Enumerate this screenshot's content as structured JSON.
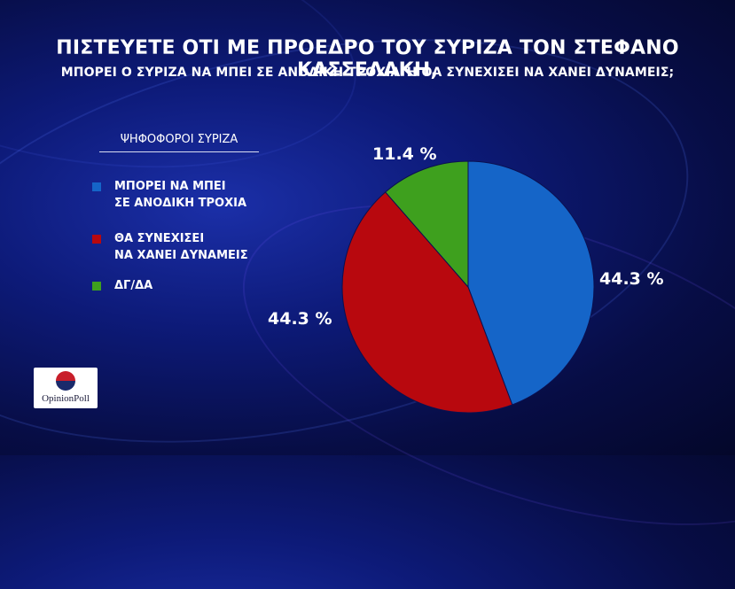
{
  "title": "ΠΙΣΤΕΥΕΤΕ ΟΤΙ ΜΕ ΠΡΟΕΔΡΟ ΤΟΥ ΣΥΡΙΖΑ ΤΟΝ ΣΤΕΦΑΝΟ ΚΑΣΣΕΛΑΚΗ,",
  "subtitle": "ΜΠΟΡΕΙ Ο ΣΥΡΙΖΑ ΝΑ ΜΠΕΙ ΣΕ ΑΝΟΔΙΚΗ ΤΡΟΧΙΑ Ή ΘΑ ΣΥΝΕΧΙΣΕΙ ΝΑ ΧΑΝΕΙ ΔΥΝΑΜΕΙΣ;",
  "legend": {
    "heading": "ΨΗΦΟΦΟΡΟΙ ΣΥΡΙΖΑ",
    "items": [
      {
        "line1": "ΜΠΟΡΕΙ ΝΑ ΜΠΕΙ",
        "line2": "ΣΕ ΑΝΟΔΙΚΗ ΤΡΟΧΙΑ",
        "color": "#1565c8"
      },
      {
        "line1": "ΘΑ ΣΥΝΕΧΙΣΕΙ",
        "line2": "ΝΑ ΧΑΝΕΙ ΔΥΝΑΜΕΙΣ",
        "color": "#b8080e"
      },
      {
        "line1": "ΔΓ/ΔΑ",
        "line2": "",
        "color": "#3ea01e"
      }
    ]
  },
  "labels": [
    "44.3 %",
    "44.3 %",
    "11.4 %"
  ],
  "logo": {
    "text": "OpinionPoll"
  },
  "chart_data": {
    "type": "pie",
    "title": "ΠΙΣΤΕΥΕΤΕ ΟΤΙ ΜΕ ΠΡΟΕΔΡΟ ΤΟΥ ΣΥΡΙΖΑ ΤΟΝ ΣΤΕΦΑΝΟ ΚΑΣΣΕΛΑΚΗ,",
    "subtitle": "ΜΠΟΡΕΙ Ο ΣΥΡΙΖΑ ΝΑ ΜΠΕΙ ΣΕ ΑΝΟΔΙΚΗ ΤΡΟΧΙΑ Ή ΘΑ ΣΥΝΕΧΙΣΕΙ ΝΑ ΧΑΝΕΙ ΔΥΝΑΜΕΙΣ;",
    "categories": [
      "ΜΠΟΡΕΙ ΝΑ ΜΠΕΙ ΣΕ ΑΝΟΔΙΚΗ ΤΡΟΧΙΑ",
      "ΘΑ ΣΥΝΕΧΙΣΕΙ ΝΑ ΧΑΝΕΙ ΔΥΝΑΜΕΙΣ",
      "ΔΓ/ΔΑ"
    ],
    "values": [
      44.3,
      44.3,
      11.4
    ],
    "colors": [
      "#1565c8",
      "#b8080e",
      "#3ea01e"
    ],
    "legend_position": "left"
  }
}
